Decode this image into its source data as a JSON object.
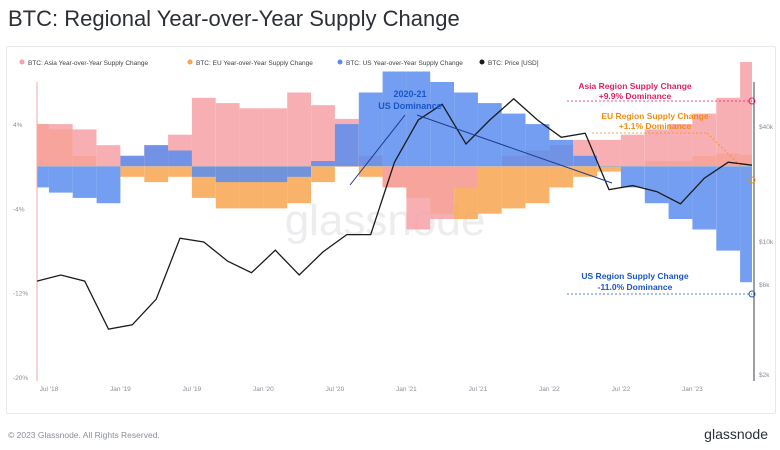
{
  "page": {
    "title": "BTC: Regional Year-over-Year Supply Change",
    "footer": "© 2023 Glassnode. All Rights Reserved.",
    "brand": "glassnode",
    "watermark": "glassnode"
  },
  "chart_data": {
    "type": "area",
    "title": "BTC: Regional Year-over-Year Supply Change",
    "legend": {
      "placement": "top-left",
      "items": [
        {
          "label": "BTC: Asia Year-over-Year Supply Change",
          "color": "#f7a1a7"
        },
        {
          "label": "BTC: EU Year-over-Year Supply Change",
          "color": "#f7a44f"
        },
        {
          "label": "BTC: US Year-over-Year Supply Change",
          "color": "#5b8def"
        },
        {
          "label": "BTC: Price [USD]",
          "color": "#1b1b1b"
        }
      ]
    },
    "x_ticks": [
      "Jul '18",
      "Jan '19",
      "Jul '19",
      "Jan '20",
      "Jul '20",
      "Jan '21",
      "Jul '21",
      "Jan '22",
      "Jul '22",
      "Jan '23"
    ],
    "y_left": {
      "ticks": [
        "4%",
        "-4%",
        "-12%",
        "-20%"
      ],
      "values": [
        4,
        -4,
        -12,
        -20
      ],
      "range": [
        -20,
        8
      ]
    },
    "y_right": {
      "ticks": [
        "$40k",
        "$10k",
        "$6k",
        "$2k"
      ],
      "values": [
        40000,
        10000,
        6000,
        2000
      ],
      "scale": "log"
    },
    "x": [
      "2018-06",
      "2018-08",
      "2018-10",
      "2018-12",
      "2019-02",
      "2019-04",
      "2019-06",
      "2019-08",
      "2019-10",
      "2019-12",
      "2020-02",
      "2020-04",
      "2020-06",
      "2020-08",
      "2020-10",
      "2020-12",
      "2021-02",
      "2021-04",
      "2021-06",
      "2021-08",
      "2021-10",
      "2021-12",
      "2022-02",
      "2022-04",
      "2022-06",
      "2022-08",
      "2022-10",
      "2022-12",
      "2023-02",
      "2023-04",
      "2023-06"
    ],
    "series": [
      {
        "name": "BTC: Asia Year-over-Year Supply Change",
        "color": "#f7a1a7",
        "values": [
          4,
          4,
          3.5,
          2,
          1,
          2,
          3,
          6.5,
          6,
          5.5,
          5.5,
          7,
          5.8,
          4.5,
          1,
          -2,
          -6,
          -5,
          -2,
          0,
          1,
          1.5,
          2,
          2.5,
          2.5,
          3,
          3.5,
          4,
          5,
          6.5,
          9.9
        ]
      },
      {
        "name": "BTC: EU Year-over-Year Supply Change",
        "color": "#f7a44f",
        "values": [
          4,
          3.5,
          1,
          0,
          -1,
          -1.5,
          -1,
          -3,
          -4,
          -4,
          -4,
          -3.5,
          -1.5,
          0,
          -1,
          -2,
          -3,
          -4.5,
          -5,
          -4.5,
          -4,
          -3.5,
          -2,
          -1,
          -0.5,
          0,
          0.5,
          0.5,
          1,
          1.2,
          1.1
        ]
      },
      {
        "name": "BTC: US Year-over-Year Supply Change",
        "color": "#5b8def",
        "values": [
          -2,
          -2.5,
          -3,
          -3.5,
          1,
          2,
          1.5,
          -1,
          -1.5,
          -1.5,
          -1.5,
          -1,
          0.5,
          4,
          7,
          9,
          9,
          8,
          7,
          6,
          5,
          4,
          2.5,
          1,
          0,
          -2,
          -3.5,
          -5,
          -6,
          -8,
          -11
        ]
      },
      {
        "name": "BTC: Price [USD]",
        "color": "#1b1b1b",
        "values": [
          6500,
          7000,
          6500,
          3600,
          3800,
          5200,
          11000,
          10500,
          8300,
          7200,
          9500,
          7000,
          9300,
          11500,
          11500,
          28000,
          47000,
          57000,
          35000,
          47000,
          61000,
          47000,
          38000,
          40000,
          20000,
          21000,
          19500,
          16800,
          23000,
          28000,
          27000
        ]
      }
    ],
    "annotations": [
      {
        "id": "us_dominance",
        "title": "2020-21",
        "text": "US Dominance",
        "color": "#1a56c8"
      },
      {
        "id": "asia_label",
        "title": "Asia Region Supply Change",
        "text": "+9.9% Dominance",
        "color": "#e21f63"
      },
      {
        "id": "eu_label",
        "title": "EU Region Supply Change",
        "text": "+1.1% Dominance",
        "color": "#f28c10"
      },
      {
        "id": "us_label",
        "title": "US Region Supply Change",
        "text": "-11.0% Dominance",
        "color": "#1a56c8"
      }
    ],
    "grid": false
  }
}
